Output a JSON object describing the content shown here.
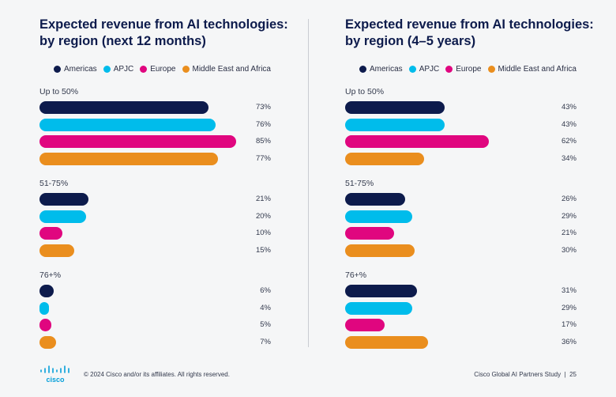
{
  "chart_data": [
    {
      "type": "bar",
      "orientation": "horizontal",
      "title": "Expected revenue from AI technologies: by region (next 12 months)",
      "title_lines": [
        "Expected revenue from AI technologies:",
        "by region (next 12 months)"
      ],
      "categories": [
        "Up to 50%",
        "51-75%",
        "76+%"
      ],
      "series": [
        {
          "name": "Americas",
          "color": "#0d1b4c",
          "values": [
            73,
            21,
            6
          ]
        },
        {
          "name": "APJC",
          "color": "#00bceb",
          "values": [
            76,
            20,
            4
          ]
        },
        {
          "name": "Europe",
          "color": "#e0067f",
          "values": [
            85,
            10,
            5
          ]
        },
        {
          "name": "Middle East and Africa",
          "color": "#ea8e1e",
          "values": [
            77,
            15,
            7
          ]
        }
      ],
      "value_suffix": "%",
      "legend": "top-right",
      "grid": false
    },
    {
      "type": "bar",
      "orientation": "horizontal",
      "title": "Expected revenue from AI technologies: by region (4-5 years)",
      "title_lines": [
        "Expected revenue from AI technologies:",
        "by region (4–5 years)"
      ],
      "categories": [
        "Up to 50%",
        "51-75%",
        "76+%"
      ],
      "series": [
        {
          "name": "Americas",
          "color": "#0d1b4c",
          "values": [
            43,
            26,
            31
          ]
        },
        {
          "name": "APJC",
          "color": "#00bceb",
          "values": [
            43,
            29,
            29
          ]
        },
        {
          "name": "Europe",
          "color": "#e0067f",
          "values": [
            62,
            21,
            17
          ]
        },
        {
          "name": "Middle East and Africa",
          "color": "#ea8e1e",
          "values": [
            34,
            30,
            36
          ]
        }
      ],
      "value_suffix": "%",
      "legend": "top-right",
      "grid": false
    }
  ],
  "footer": {
    "logo": "cisco",
    "copyright": "© 2024 Cisco and/or its affiliates. All rights reserved.",
    "study": "Cisco Global AI Partners Study  |  25"
  }
}
